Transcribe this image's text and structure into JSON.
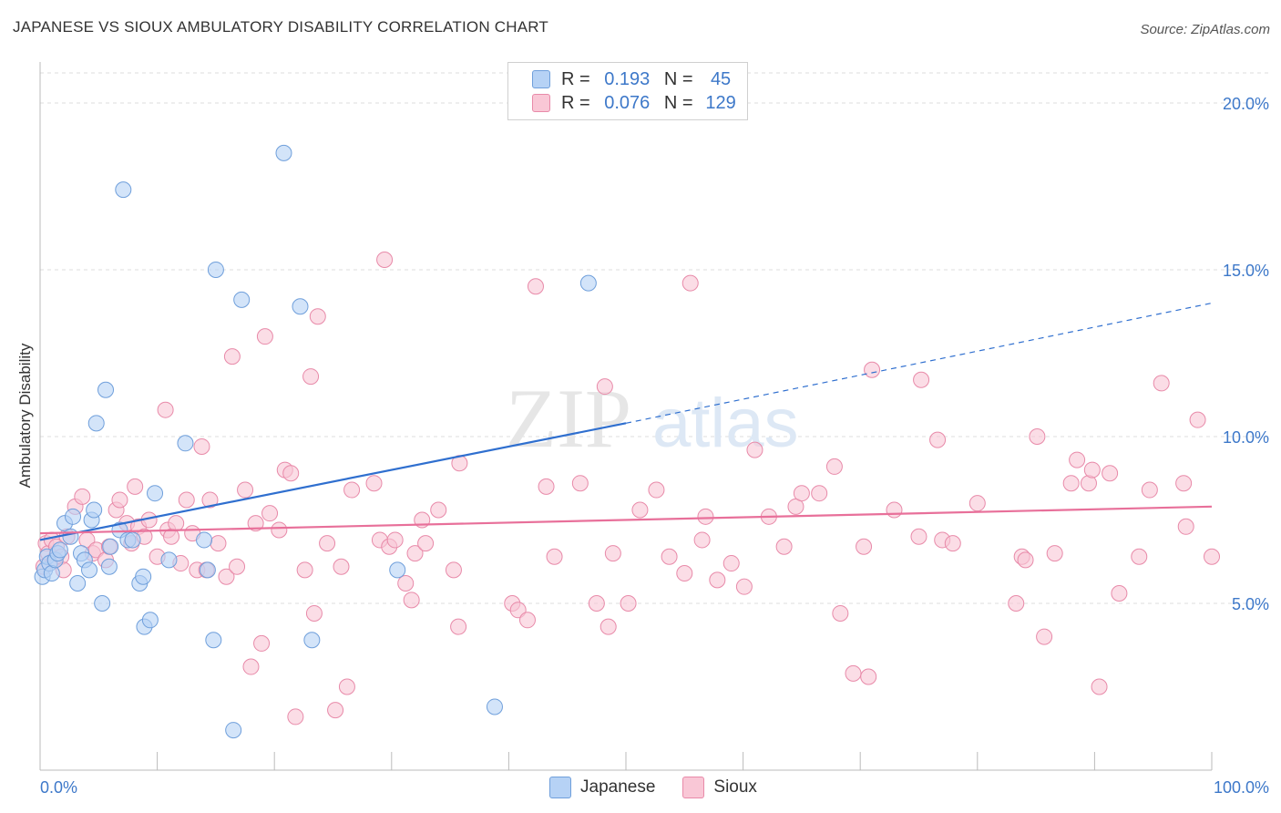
{
  "title": "JAPANESE VS SIOUX AMBULATORY DISABILITY CORRELATION CHART",
  "source": "Source: ZipAtlas.com",
  "watermark": {
    "part1": "ZIP",
    "part2": "atlas"
  },
  "legend": {
    "rows": [
      {
        "r_label": "R =",
        "r_value": "0.193",
        "n_label": "N =",
        "n_value": "45"
      },
      {
        "r_label": "R =",
        "r_value": "0.076",
        "n_label": "N =",
        "n_value": "129"
      }
    ]
  },
  "colors": {
    "japanese_fill": "#b6d2f5",
    "japanese_stroke": "#6f9fdb",
    "japanese_line": "#2f6fcf",
    "sioux_fill": "#f9c7d6",
    "sioux_stroke": "#e88aa9",
    "sioux_line": "#e8709a",
    "tick_label": "#3d78c9",
    "grid": "#dddddd"
  },
  "chart_data": {
    "type": "scatter",
    "title": "JAPANESE VS SIOUX AMBULATORY DISABILITY CORRELATION CHART",
    "xlabel": "",
    "ylabel": "Ambulatory Disability",
    "xlim": [
      0,
      100
    ],
    "ylim": [
      0,
      20
    ],
    "x_tick_labels": [
      "0.0%",
      "100.0%"
    ],
    "y_ticks": [
      5,
      10,
      15,
      20
    ],
    "y_tick_labels": [
      "5.0%",
      "10.0%",
      "15.0%",
      "20.0%"
    ],
    "grid": "horizontal dashed",
    "legend_position": "bottom-center",
    "series": [
      {
        "name": "Japanese",
        "R": 0.193,
        "N": 45,
        "trend": {
          "x0": 0,
          "y0": 6.9,
          "x1": 50,
          "y1": 10.4,
          "dashed_to_x": 100,
          "dashed_to_y": 14.0
        },
        "points": [
          [
            0.2,
            5.8
          ],
          [
            0.4,
            6.0
          ],
          [
            0.6,
            6.4
          ],
          [
            0.8,
            6.2
          ],
          [
            1.0,
            5.9
          ],
          [
            1.3,
            6.3
          ],
          [
            1.5,
            6.5
          ],
          [
            1.7,
            6.6
          ],
          [
            2.1,
            7.4
          ],
          [
            2.6,
            7.0
          ],
          [
            2.8,
            7.6
          ],
          [
            3.2,
            5.6
          ],
          [
            3.5,
            6.5
          ],
          [
            3.8,
            6.3
          ],
          [
            4.2,
            6.0
          ],
          [
            4.4,
            7.5
          ],
          [
            4.6,
            7.8
          ],
          [
            5.3,
            5.0
          ],
          [
            5.6,
            11.4
          ],
          [
            5.9,
            6.1
          ],
          [
            6.0,
            6.7
          ],
          [
            4.8,
            10.4
          ],
          [
            6.8,
            7.2
          ],
          [
            7.1,
            17.4
          ],
          [
            7.5,
            6.9
          ],
          [
            7.9,
            6.9
          ],
          [
            8.5,
            5.6
          ],
          [
            8.8,
            5.8
          ],
          [
            8.9,
            4.3
          ],
          [
            9.4,
            4.5
          ],
          [
            9.8,
            8.3
          ],
          [
            11.0,
            6.3
          ],
          [
            12.4,
            9.8
          ],
          [
            14.0,
            6.9
          ],
          [
            14.3,
            6.0
          ],
          [
            14.8,
            3.9
          ],
          [
            15.0,
            15.0
          ],
          [
            16.5,
            1.2
          ],
          [
            17.2,
            14.1
          ],
          [
            20.8,
            18.5
          ],
          [
            22.2,
            13.9
          ],
          [
            23.2,
            3.9
          ],
          [
            30.5,
            6.0
          ],
          [
            38.8,
            1.9
          ],
          [
            46.8,
            14.6
          ]
        ]
      },
      {
        "name": "Sioux",
        "R": 0.076,
        "N": 129,
        "trend": {
          "x0": 0,
          "y0": 7.1,
          "x1": 100,
          "y1": 7.9
        },
        "points": [
          [
            0.3,
            6.1
          ],
          [
            0.5,
            6.8
          ],
          [
            0.7,
            6.5
          ],
          [
            1.0,
            6.9
          ],
          [
            1.2,
            6.3
          ],
          [
            1.4,
            6.7
          ],
          [
            1.8,
            6.4
          ],
          [
            2.0,
            6.0
          ],
          [
            2.3,
            7.0
          ],
          [
            3.0,
            7.9
          ],
          [
            3.6,
            8.2
          ],
          [
            4.0,
            6.9
          ],
          [
            4.5,
            6.5
          ],
          [
            4.8,
            6.6
          ],
          [
            5.6,
            6.3
          ],
          [
            5.9,
            6.7
          ],
          [
            6.5,
            7.8
          ],
          [
            6.8,
            8.1
          ],
          [
            7.4,
            7.4
          ],
          [
            7.8,
            6.8
          ],
          [
            8.1,
            8.5
          ],
          [
            8.4,
            7.3
          ],
          [
            8.9,
            7.0
          ],
          [
            9.3,
            7.5
          ],
          [
            10.0,
            6.4
          ],
          [
            10.7,
            10.8
          ],
          [
            10.9,
            7.2
          ],
          [
            11.2,
            7.0
          ],
          [
            11.6,
            7.4
          ],
          [
            12.0,
            6.2
          ],
          [
            12.5,
            8.1
          ],
          [
            13.0,
            7.1
          ],
          [
            13.4,
            6.0
          ],
          [
            13.8,
            9.7
          ],
          [
            14.2,
            6.0
          ],
          [
            14.5,
            8.1
          ],
          [
            15.2,
            6.8
          ],
          [
            15.9,
            5.8
          ],
          [
            16.4,
            12.4
          ],
          [
            16.8,
            6.1
          ],
          [
            17.5,
            8.4
          ],
          [
            18.0,
            3.1
          ],
          [
            18.4,
            7.4
          ],
          [
            18.9,
            3.8
          ],
          [
            19.2,
            13.0
          ],
          [
            19.6,
            7.7
          ],
          [
            20.4,
            7.2
          ],
          [
            20.9,
            9.0
          ],
          [
            21.4,
            8.9
          ],
          [
            21.8,
            1.6
          ],
          [
            22.6,
            6.0
          ],
          [
            23.1,
            11.8
          ],
          [
            23.4,
            4.7
          ],
          [
            23.7,
            13.6
          ],
          [
            24.5,
            6.8
          ],
          [
            25.2,
            1.8
          ],
          [
            25.7,
            6.1
          ],
          [
            26.2,
            2.5
          ],
          [
            26.6,
            8.4
          ],
          [
            28.5,
            8.6
          ],
          [
            29.0,
            6.9
          ],
          [
            29.4,
            15.3
          ],
          [
            29.8,
            6.7
          ],
          [
            30.3,
            6.9
          ],
          [
            31.2,
            5.6
          ],
          [
            31.7,
            5.1
          ],
          [
            32.0,
            6.5
          ],
          [
            32.6,
            7.5
          ],
          [
            32.9,
            6.8
          ],
          [
            34.0,
            7.8
          ],
          [
            35.3,
            6.0
          ],
          [
            35.7,
            4.3
          ],
          [
            35.8,
            9.2
          ],
          [
            40.3,
            5.0
          ],
          [
            40.8,
            4.8
          ],
          [
            41.6,
            4.5
          ],
          [
            42.3,
            14.5
          ],
          [
            43.2,
            8.5
          ],
          [
            43.9,
            6.4
          ],
          [
            46.1,
            8.6
          ],
          [
            47.5,
            5.0
          ],
          [
            48.2,
            11.5
          ],
          [
            48.5,
            4.3
          ],
          [
            48.9,
            6.5
          ],
          [
            50.2,
            5.0
          ],
          [
            51.2,
            7.8
          ],
          [
            52.6,
            8.4
          ],
          [
            53.7,
            6.4
          ],
          [
            55.0,
            5.9
          ],
          [
            55.5,
            14.6
          ],
          [
            56.5,
            6.9
          ],
          [
            56.8,
            7.6
          ],
          [
            57.8,
            5.7
          ],
          [
            59.0,
            6.2
          ],
          [
            60.1,
            5.5
          ],
          [
            61.0,
            9.6
          ],
          [
            62.2,
            7.6
          ],
          [
            63.5,
            6.7
          ],
          [
            64.5,
            7.9
          ],
          [
            65.0,
            8.3
          ],
          [
            66.5,
            8.3
          ],
          [
            67.8,
            9.1
          ],
          [
            68.3,
            4.7
          ],
          [
            69.4,
            2.9
          ],
          [
            70.3,
            6.7
          ],
          [
            70.7,
            2.8
          ],
          [
            71.0,
            12.0
          ],
          [
            72.9,
            7.8
          ],
          [
            75.0,
            7.0
          ],
          [
            75.2,
            11.7
          ],
          [
            76.6,
            9.9
          ],
          [
            77.0,
            6.9
          ],
          [
            77.9,
            6.8
          ],
          [
            80.0,
            8.0
          ],
          [
            83.3,
            5.0
          ],
          [
            83.8,
            6.4
          ],
          [
            84.1,
            6.3
          ],
          [
            85.1,
            10.0
          ],
          [
            85.7,
            4.0
          ],
          [
            86.6,
            6.5
          ],
          [
            88.0,
            8.6
          ],
          [
            88.5,
            9.3
          ],
          [
            89.5,
            8.6
          ],
          [
            89.8,
            9.0
          ],
          [
            90.4,
            2.5
          ],
          [
            91.3,
            8.9
          ],
          [
            92.1,
            5.3
          ],
          [
            93.8,
            6.4
          ],
          [
            94.7,
            8.4
          ],
          [
            95.7,
            11.6
          ],
          [
            97.6,
            8.6
          ],
          [
            97.8,
            7.3
          ],
          [
            98.8,
            10.5
          ],
          [
            100.0,
            6.4
          ]
        ]
      }
    ]
  }
}
